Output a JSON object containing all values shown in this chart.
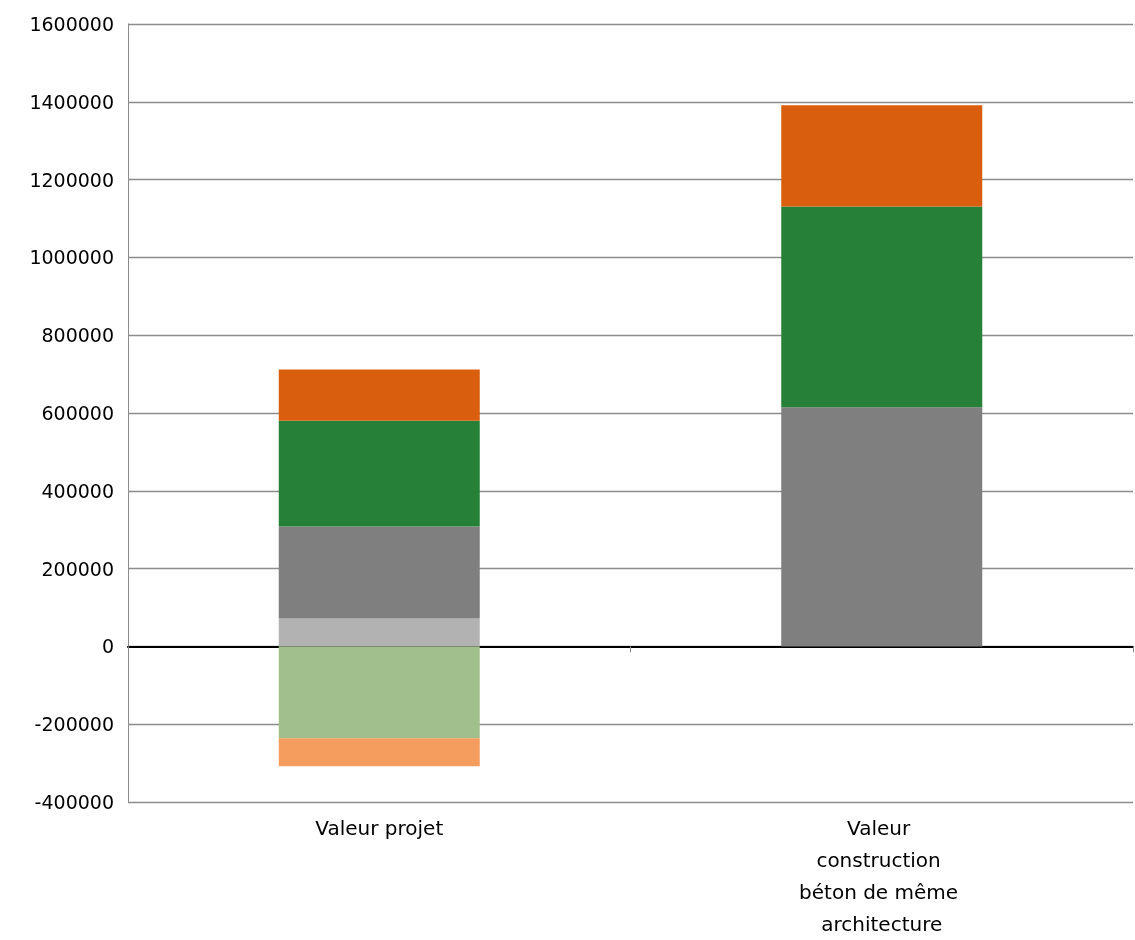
{
  "chart_data": {
    "type": "bar",
    "stacked": true,
    "categories": [
      "Valeur projet",
      "Valeur construction béton de même architecture"
    ],
    "series": [
      {
        "color": "#b2b2b2",
        "values": [
          72000,
          null
        ]
      },
      {
        "color": "#7f7f7f",
        "values": [
          236000,
          615000
        ]
      },
      {
        "color": "#268037",
        "values": [
          272000,
          516000
        ]
      },
      {
        "color": "#d95f0e",
        "values": [
          132000,
          260000
        ]
      },
      {
        "color": "#a0bf8c",
        "values": [
          -236000,
          null
        ]
      },
      {
        "color": "#f59d5e",
        "values": [
          -72000,
          null
        ]
      }
    ],
    "ylim": [
      -400000,
      1600000
    ],
    "yticks": [
      -400000,
      -200000,
      0,
      200000,
      400000,
      600000,
      800000,
      1000000,
      1200000,
      1400000,
      1600000
    ],
    "grid": "y"
  }
}
